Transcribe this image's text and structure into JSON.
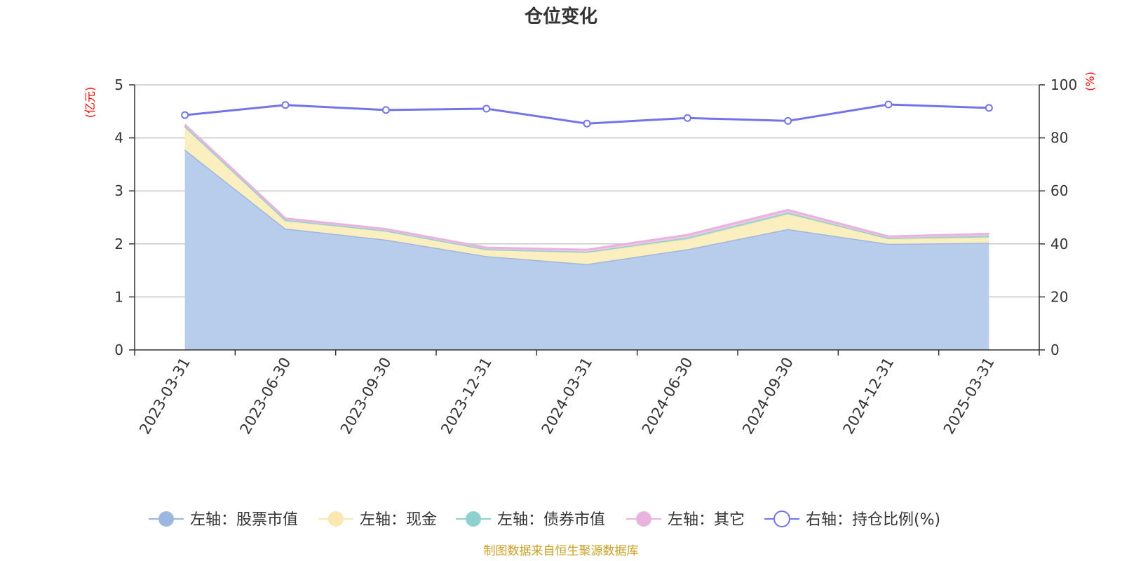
{
  "chart_data": {
    "type": "area",
    "title": "仓位变化",
    "source": "制图数据来自恒生聚源数据库",
    "x": [
      "2023-03-31",
      "2023-06-30",
      "2023-09-30",
      "2023-12-31",
      "2024-03-31",
      "2024-06-30",
      "2024-09-30",
      "2024-12-31",
      "2025-03-31"
    ],
    "left_axis": {
      "unit": "(亿元)",
      "ylim": [
        0,
        5
      ],
      "ticks": [
        "0",
        "1",
        "2",
        "3",
        "4",
        "5"
      ]
    },
    "right_axis": {
      "unit": "(%)",
      "ylim": [
        0,
        100
      ],
      "ticks": [
        "0",
        "20",
        "40",
        "60",
        "80",
        "100"
      ]
    },
    "grid": true,
    "legend_position": "bottom",
    "stacked_series": [
      {
        "name": "左轴：股票市值",
        "color": "#9db7e0",
        "fill": "#b8cceb",
        "values": [
          3.78,
          2.29,
          2.08,
          1.77,
          1.62,
          1.9,
          2.28,
          2.0,
          2.02
        ]
      },
      {
        "name": "左轴：现金",
        "color": "#f9e9b0",
        "fill": "#fbefc0",
        "values": [
          0.44,
          0.16,
          0.17,
          0.13,
          0.22,
          0.19,
          0.28,
          0.1,
          0.1
        ]
      },
      {
        "name": "左轴：债券市值",
        "color": "#8fd1cf",
        "fill": "#a7dcd9",
        "values": [
          0.0,
          0.0,
          0.0,
          0.0,
          0.01,
          0.03,
          0.03,
          0.01,
          0.03
        ]
      },
      {
        "name": "左轴：其它",
        "color": "#e8b3dc",
        "fill": "#f0c8e6",
        "values": [
          0.03,
          0.03,
          0.03,
          0.03,
          0.04,
          0.05,
          0.05,
          0.03,
          0.04
        ]
      }
    ],
    "line_series": {
      "name": "右轴：持仓比例(%)",
      "color": "#7474e8",
      "values": [
        88.6,
        92.4,
        90.5,
        91.0,
        85.4,
        87.5,
        86.4,
        92.6,
        91.3
      ]
    }
  }
}
